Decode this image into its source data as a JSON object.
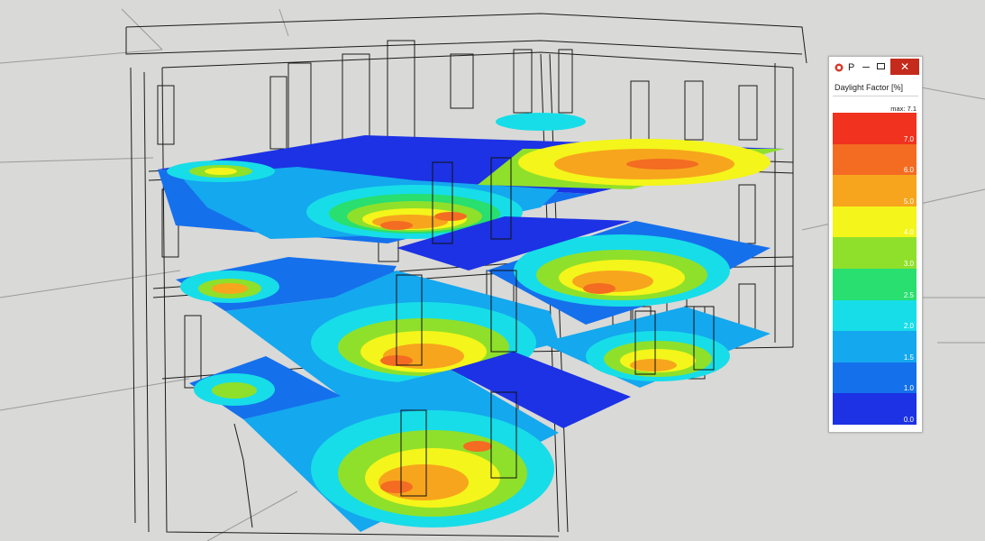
{
  "legend_window": {
    "title": "P",
    "min_glyph": "–",
    "close_glyph": "✕",
    "heading": "Daylight Factor [%]",
    "max_label": "max: 7.1",
    "scale": [
      {
        "label": "7.0",
        "color": "#f0321e"
      },
      {
        "label": "6.0",
        "color": "#f36c22"
      },
      {
        "label": "5.0",
        "color": "#f7a51d"
      },
      {
        "label": "4.0",
        "color": "#f4f51a"
      },
      {
        "label": "3.0",
        "color": "#8fe02a"
      },
      {
        "label": "2.5",
        "color": "#28df6f"
      },
      {
        "label": "2.0",
        "color": "#17dde8"
      },
      {
        "label": "1.5",
        "color": "#14a8ee"
      },
      {
        "label": "1.0",
        "color": "#1570ec"
      },
      {
        "label": "0.0",
        "color": "#1c32e4"
      }
    ]
  },
  "viewport": {
    "background": "#d9d9d7",
    "colors": {
      "dark_blue": "#1c32e4",
      "blue": "#1570ec",
      "light_blue": "#14a8ee",
      "cyan": "#17dde8",
      "green": "#28df6f",
      "lime": "#8fe02a",
      "yellow": "#f4f51a",
      "orange": "#f7a51d",
      "dark_orange": "#f36c22",
      "red": "#f0321e"
    }
  }
}
